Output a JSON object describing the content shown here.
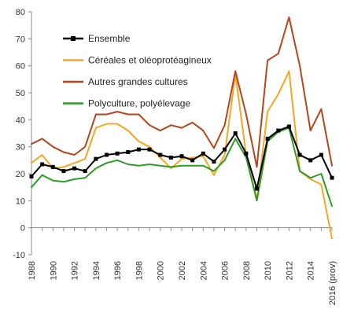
{
  "chart_data": {
    "type": "line",
    "title": "",
    "xlabel": "",
    "ylabel": "",
    "ylim": [
      -10,
      80
    ],
    "yticks": [
      -10,
      0,
      10,
      20,
      30,
      40,
      50,
      60,
      70,
      80
    ],
    "xlim": [
      1988,
      2016
    ],
    "xtick_labels": [
      "1988",
      "1990",
      "1992",
      "1994",
      "1996",
      "1998",
      "2000",
      "2002",
      "2004",
      "2006",
      "2008",
      "2010",
      "2012",
      "2014",
      "2016 (prov)"
    ],
    "xtick_values": [
      1988,
      1990,
      1992,
      1994,
      1996,
      1998,
      2000,
      2002,
      2004,
      2006,
      2008,
      2010,
      2012,
      2014,
      2016
    ],
    "grid": false,
    "legend_position": "top-left",
    "x": [
      1988,
      1989,
      1990,
      1991,
      1992,
      1993,
      1994,
      1995,
      1996,
      1997,
      1998,
      1999,
      2000,
      2001,
      2002,
      2003,
      2004,
      2005,
      2006,
      2007,
      2008,
      2009,
      2010,
      2011,
      2012,
      2013,
      2014,
      2015,
      2016
    ],
    "series": [
      {
        "name": "Ensemble",
        "color": "#000000",
        "markers": true,
        "values": [
          19,
          23.5,
          22.5,
          21,
          22,
          21,
          25.5,
          27,
          27.5,
          28,
          29,
          29,
          27,
          26,
          26.5,
          25,
          27.5,
          24.5,
          29,
          35,
          27.5,
          14.5,
          33,
          36,
          37.5,
          27,
          25,
          27,
          18.5
        ]
      },
      {
        "name": "Céréales et oléoprotéagineux",
        "color": "#f5a623",
        "markers": false,
        "values": [
          24,
          27,
          22,
          22.5,
          24,
          25.5,
          37,
          38.5,
          38.5,
          36,
          32,
          30,
          26,
          22,
          25.5,
          26,
          26.5,
          19.5,
          27,
          57,
          27,
          10.5,
          43,
          49.5,
          58,
          21,
          18,
          16,
          -4
        ]
      },
      {
        "name": "Autres grandes cultures",
        "color": "#b5451b",
        "markers": false,
        "values": [
          31,
          33,
          30,
          28,
          27,
          30,
          42,
          42,
          43,
          42,
          42,
          38,
          36,
          38,
          37,
          39,
          36,
          29.5,
          38,
          58,
          42,
          22.5,
          62,
          64.5,
          78,
          60,
          36,
          44,
          23
        ]
      },
      {
        "name": "Polyculture, polyélevage",
        "color": "#2e9b27",
        "markers": false,
        "values": [
          15,
          19.5,
          17.5,
          17,
          18,
          18.5,
          22,
          24,
          25,
          23.5,
          23,
          23.5,
          23,
          22.5,
          23,
          23,
          23,
          21,
          25,
          33,
          26,
          10,
          32,
          35.5,
          37,
          21,
          18.5,
          20,
          8
        ]
      }
    ]
  }
}
